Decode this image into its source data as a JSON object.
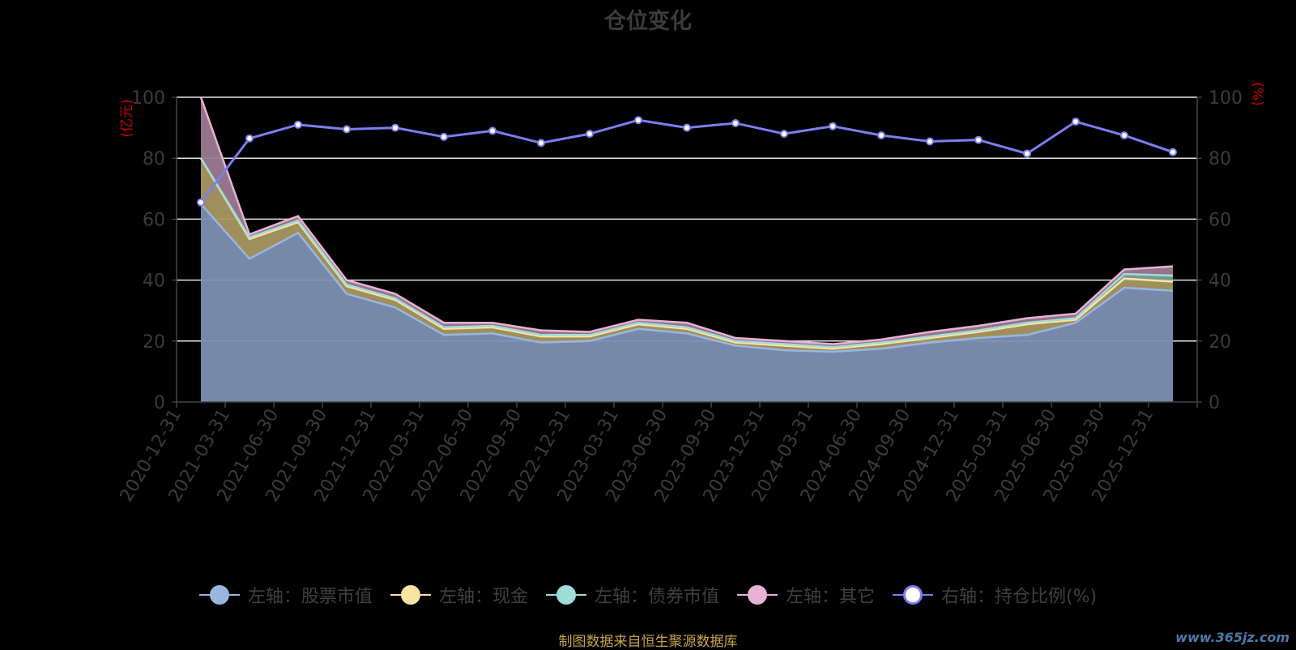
{
  "chart_data": {
    "type": "area",
    "title": "仓位变化",
    "left_axis": {
      "label": "(亿元)",
      "ylim": [
        0,
        100
      ],
      "ticks": [
        0,
        20,
        40,
        60,
        80,
        100
      ]
    },
    "right_axis": {
      "label": "(%)",
      "ylim": [
        0,
        100
      ],
      "ticks": [
        0,
        20,
        40,
        60,
        80,
        100
      ]
    },
    "categories": [
      "2020-12-31",
      "2021-03-31",
      "2021-06-30",
      "2021-09-30",
      "2021-12-31",
      "2022-03-31",
      "2022-06-30",
      "2022-09-30",
      "2022-12-31",
      "2023-03-31",
      "2023-06-30",
      "2023-09-30",
      "2023-12-31",
      "2024-03-31",
      "2024-06-30",
      "2024-09-30",
      "2024-12-31",
      "2025-03-31",
      "2025-06-30",
      "2025-09-30",
      "2025-12-31"
    ],
    "series": [
      {
        "name": "左轴：股票市值",
        "axis": "left",
        "stacked": true,
        "color": "#9ab6e0",
        "values": [
          65.0,
          47.0,
          55.5,
          35.5,
          31.0,
          22.0,
          22.5,
          19.5,
          20.0,
          24.0,
          22.5,
          18.5,
          17.0,
          16.5,
          17.5,
          19.5,
          21.0,
          22.0,
          26.0,
          37.5,
          36.5
        ]
      },
      {
        "name": "左轴：现金",
        "axis": "left",
        "stacked": true,
        "color": "#f9e4a2",
        "values": [
          15.0,
          6.5,
          3.5,
          2.5,
          2.5,
          2.0,
          2.0,
          2.0,
          1.5,
          1.5,
          1.5,
          1.0,
          1.5,
          1.0,
          1.5,
          1.5,
          2.0,
          3.5,
          1.0,
          3.0,
          3.0
        ]
      },
      {
        "name": "左轴：债券市值",
        "axis": "left",
        "stacked": true,
        "color": "#a0dcd7",
        "values": [
          0.0,
          0.5,
          0.5,
          0.5,
          0.5,
          0.5,
          0.5,
          0.5,
          0.5,
          0.5,
          0.5,
          0.5,
          0.5,
          0.5,
          0.5,
          0.5,
          0.5,
          0.5,
          0.5,
          1.5,
          2.0
        ]
      },
      {
        "name": "左轴：其它",
        "axis": "left",
        "stacked": true,
        "color": "#e8b2d6",
        "values": [
          20.0,
          1.0,
          1.5,
          1.5,
          1.5,
          1.5,
          1.0,
          1.5,
          1.0,
          1.0,
          1.5,
          1.0,
          1.0,
          1.0,
          1.0,
          1.5,
          1.5,
          1.5,
          1.5,
          1.5,
          3.0
        ]
      },
      {
        "name": "右轴：持仓比例(%)",
        "axis": "right",
        "type": "line",
        "color": "#7b7ff0",
        "values": [
          65.5,
          86.5,
          91.0,
          89.5,
          90.0,
          87.0,
          89.0,
          85.0,
          88.0,
          92.5,
          90.0,
          91.5,
          88.0,
          90.5,
          87.5,
          85.5,
          86.0,
          81.5,
          92.0,
          87.5,
          82.0
        ]
      }
    ],
    "grid": true,
    "legend_position": "bottom"
  },
  "source_note": "制图数据来自恒生聚源数据库",
  "watermark": "www.365jz.com"
}
